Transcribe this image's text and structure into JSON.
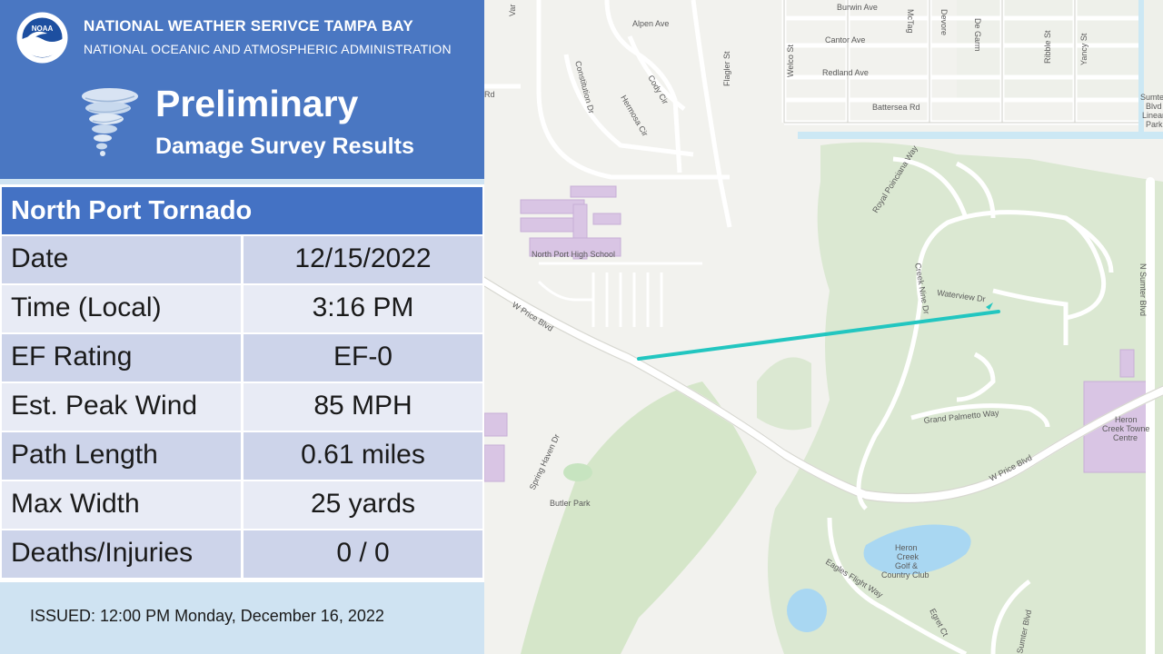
{
  "header": {
    "org_title": "NATIONAL WEATHER SERIVCE TAMPA BAY",
    "org_subtitle": "NATIONAL OCEANIC AND ATMOSPHERIC ADMINISTRATION",
    "logo_text": "NOAA",
    "logo_icon": "noaa-logo",
    "tornado_icon": "tornado-icon",
    "report_title": "Preliminary",
    "report_subtitle": "Damage Survey Results"
  },
  "table": {
    "event_title": "North Port Tornado",
    "rows": [
      {
        "label": "Date",
        "value": "12/15/2022"
      },
      {
        "label": "Time (Local)",
        "value": "3:16 PM"
      },
      {
        "label": "EF Rating",
        "value": "EF-0"
      },
      {
        "label": "Est. Peak Wind",
        "value": "85 MPH"
      },
      {
        "label": "Path Length",
        "value": "0.61 miles"
      },
      {
        "label": "Max Width",
        "value": "25 yards"
      },
      {
        "label": "Deaths/Injuries",
        "value": "0 / 0"
      }
    ]
  },
  "issued": "ISSUED:  12:00 PM Monday, December 16, 2022",
  "map": {
    "path_color": "#22c6c0",
    "labels": {
      "alpen_ave": "Alpen Ave",
      "burwin_ave": "Burwin Ave",
      "cantor_ave": "Cantor Ave",
      "redland_ave": "Redland Ave",
      "battersea_rd": "Battersea Rd",
      "mctag": "McTag",
      "devore": "Devore",
      "de_garm": "De Garm",
      "ribble_st": "Ribble St",
      "yancy_st": "Yancy St",
      "welco_st": "Welco St",
      "flagler_st": "Flagler St",
      "constitution_dr": "Constitution Dr",
      "hermosa_cir": "Hermosa Cir",
      "cody_cir": "Cody Cir",
      "var": "Var",
      "rd": "Rd",
      "sumter_park_1": "Sumter",
      "sumter_park_2": "Blvd",
      "sumter_park_3": "Linear",
      "sumter_park_4": "Park",
      "royal_poinciana_way": "Royal Poinciana Way",
      "north_port_high_school": "North Port High School",
      "w_price_blvd_1": "W Price Blvd",
      "w_price_blvd_2": "W Price Blvd",
      "creek_nine_dr": "Creek Nine Dr",
      "waterview_dr": "Waterview Dr",
      "n_sumter_blvd": "N Sumter Blvd",
      "grand_palmetto_way": "Grand Palmetto Way",
      "heron_creek_towne_1": "Heron",
      "heron_creek_towne_2": "Creek Towne",
      "heron_creek_towne_3": "Centre",
      "spring_haven_dr": "Spring Haven Dr",
      "butler_park": "Butler Park",
      "heron_golf_1": "Heron",
      "heron_golf_2": "Creek",
      "heron_golf_3": "Golf &",
      "heron_golf_4": "Country Club",
      "eagles_flight_way": "Eagles Flight Way",
      "egret_ct": "Egret Ct",
      "sumter_blvd_s": "Sumter Blvd"
    }
  }
}
